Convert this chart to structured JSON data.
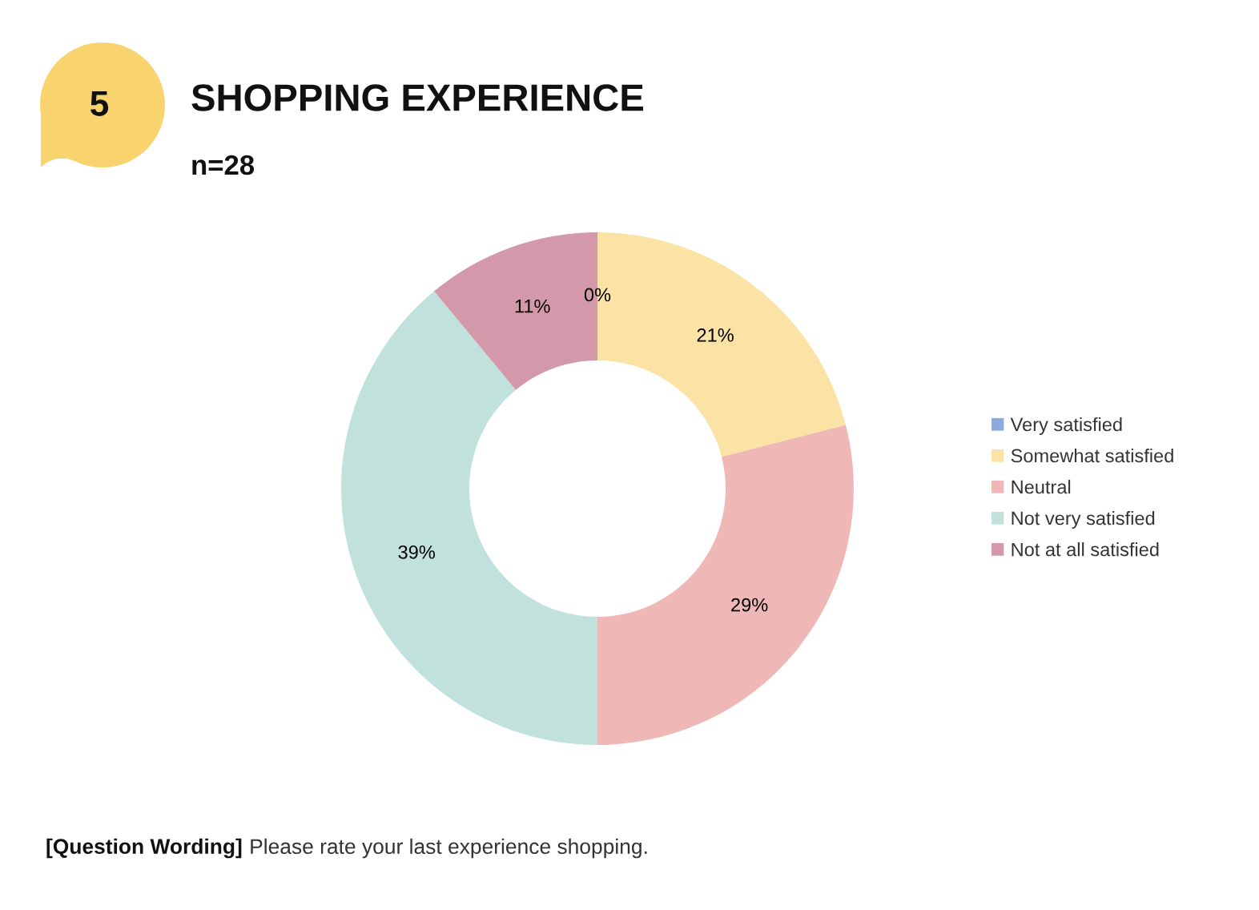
{
  "chart_data": {
    "type": "donut",
    "title": "SHOPPING EXPERIENCE",
    "subtitle": "n=28",
    "categories": [
      "Very satisfied",
      "Somewhat satisfied",
      "Neutral",
      "Not very satisfied",
      "Not at all satisfied"
    ],
    "values": [
      0,
      21,
      29,
      39,
      11
    ],
    "value_labels": [
      "0%",
      "21%",
      "29%",
      "39%",
      "11%"
    ],
    "colors": [
      "#8eaadb",
      "#fbe3a6",
      "#efb8b6",
      "#c1e1dc",
      "#d399aa"
    ],
    "legend": "right",
    "annotations": [
      "5",
      "[Question Wording]",
      "Please rate your last experience shopping."
    ]
  }
}
